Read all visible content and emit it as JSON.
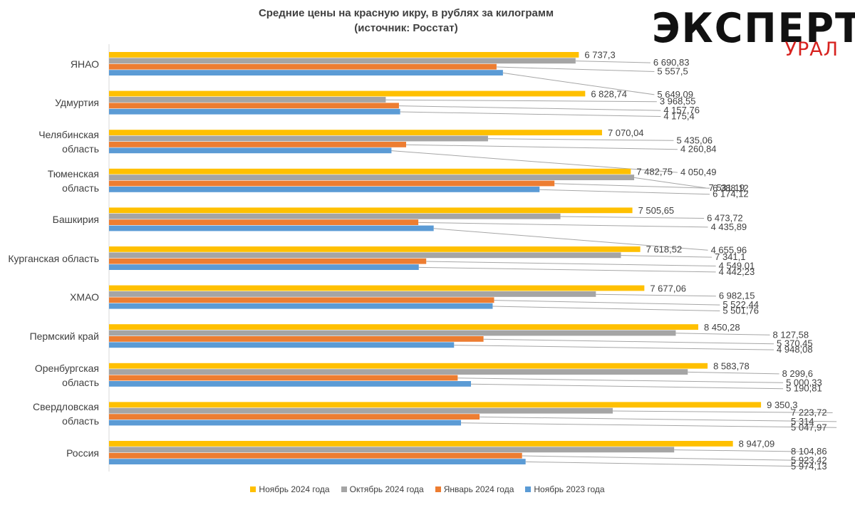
{
  "header": {
    "title_line1": "Средние цены на красную икру, в рублях за килограмм",
    "title_line2": "(источник: Росстат)"
  },
  "brand": {
    "name": "ЭКСПЕРТ",
    "sub": "УРАЛ",
    "name_color": "#111111",
    "sub_color": "#d7221f"
  },
  "chart_data": {
    "type": "bar",
    "orientation": "horizontal",
    "title": "Средние цены на красную икру, в рублях за килограмм (источник: Росстат)",
    "xlabel": "",
    "ylabel": "",
    "xlim": [
      0,
      9500
    ],
    "grid": false,
    "legend_position": "bottom",
    "categories": [
      {
        "label": "ЯНАО",
        "lines": [
          "ЯНАО"
        ]
      },
      {
        "label": "Удмуртия",
        "lines": [
          "Удмуртия"
        ]
      },
      {
        "label": "Челябинская область",
        "lines": [
          "Челябинская",
          "область"
        ]
      },
      {
        "label": "Тюменская область",
        "lines": [
          "Тюменская",
          "область"
        ]
      },
      {
        "label": "Башкирия",
        "lines": [
          "Башкирия"
        ]
      },
      {
        "label": "Курганская область",
        "lines": [
          "Курганская область"
        ]
      },
      {
        "label": "ХМАО",
        "lines": [
          "ХМАО"
        ]
      },
      {
        "label": "Пермский край",
        "lines": [
          "Пермский край"
        ]
      },
      {
        "label": "Оренбургская область",
        "lines": [
          "Оренбургская",
          "область"
        ]
      },
      {
        "label": "Свердловская область",
        "lines": [
          "Свердловская",
          "область"
        ]
      },
      {
        "label": "Россия",
        "lines": [
          "Россия"
        ]
      }
    ],
    "series": [
      {
        "name": "Ноябрь 2024 года",
        "color": "#ffc000",
        "values": [
          6737.3,
          6828.74,
          7070.04,
          7482.75,
          7505.65,
          7618.52,
          7677.06,
          8450.28,
          8583.78,
          9350.3,
          8947.09
        ],
        "labels": [
          "6 737,3",
          "6 828,74",
          "7 070,04",
          "7 482,75",
          "7 505,65",
          "7 618,52",
          "7 677,06",
          "8 450,28",
          "8 583,78",
          "9 350,3",
          "8 947,09"
        ]
      },
      {
        "name": "Октябрь 2024 года",
        "color": "#a5a5a5",
        "values": [
          6690.83,
          3968.55,
          5435.06,
          7531.19,
          6473.72,
          7341.1,
          6982.15,
          8127.58,
          8299.6,
          7223.72,
          8104.86
        ],
        "labels": [
          "6 690,83",
          "3 968,55",
          "5 435,06",
          "7 531,19",
          "6 473,72",
          "7 341,1",
          "6 982,15",
          "8 127,58",
          "8 299,6",
          "7 223,72",
          "8 104,86"
        ]
      },
      {
        "name": "Январь 2024 года",
        "color": "#ed7d31",
        "values": [
          5557.5,
          4157.76,
          4260.84,
          6388.12,
          4435.89,
          4549.01,
          5522.44,
          5370.45,
          5000.33,
          5314,
          5923.42
        ],
        "labels": [
          "5 557,5",
          "4 157,76",
          "4 260,84",
          "6 388,12",
          "4 435,89",
          "4 549,01",
          "5 522,44",
          "5 370,45",
          "5 000,33",
          "5 314",
          "5 923,42"
        ]
      },
      {
        "name": "Ноябрь 2023 года",
        "color": "#5b9bd5",
        "values": [
          5649.09,
          4175.4,
          4050.49,
          6174.12,
          4655.96,
          4442.23,
          5501.76,
          4948.08,
          5190.81,
          5047.97,
          5974.13
        ],
        "labels": [
          "5 649,09",
          "4 175,4",
          "4 050,49",
          "6 174,12",
          "4 655,96",
          "4 442,23",
          "5 501,76",
          "4 948,08",
          "5 190,81",
          "5 047,97",
          "5 974,13"
        ]
      }
    ],
    "label_anchor_values": [
      [
        6737.3,
        6690.83,
        5557.5,
        5649.09
      ],
      [
        6828.74,
        3968.55,
        4157.76,
        4175.4
      ],
      [
        7070.04,
        5435.06,
        4260.84,
        4050.49
      ],
      [
        7482.75,
        7531.19,
        6388.12,
        6174.12
      ],
      [
        7505.65,
        6473.72,
        4435.89,
        4655.96
      ],
      [
        7618.52,
        7341.1,
        4549.01,
        4442.23
      ],
      [
        7677.06,
        6982.15,
        5522.44,
        5501.76
      ],
      [
        8450.28,
        8127.58,
        5370.45,
        4948.08
      ],
      [
        8583.78,
        8299.6,
        5000.33,
        5190.81
      ],
      [
        9350.3,
        7223.72,
        5314,
        5047.97
      ],
      [
        8947.09,
        8104.86,
        5923.42,
        5974.13
      ]
    ],
    "label_anchor_offsets_rows": [
      [
        0,
        0,
        0,
        2
      ],
      [
        0,
        0,
        0,
        0
      ],
      [
        0,
        0,
        0,
        2
      ],
      [
        0,
        1,
        0,
        0
      ],
      [
        0,
        0,
        0,
        2
      ],
      [
        -1,
        0,
        0,
        0
      ],
      [
        -1,
        0,
        0,
        0
      ],
      [
        -1,
        0,
        0,
        0
      ],
      [
        0,
        0,
        0,
        0
      ],
      [
        -1,
        0,
        0,
        0
      ],
      [
        0,
        0,
        0,
        0
      ]
    ]
  }
}
